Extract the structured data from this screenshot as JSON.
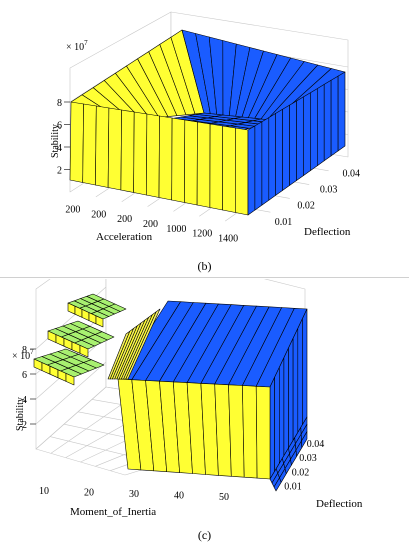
{
  "panels": [
    {
      "caption": "(b)",
      "chart_data": {
        "type": "surface",
        "zlabel": "Stability",
        "z_multiplier": "× 10",
        "z_multiplier_exp": "7",
        "xlabel": "Acceleration",
        "ylabel": "Deflection",
        "x_ticks": [
          "200",
          "200",
          "200",
          "200",
          "1000",
          "1200",
          "1400"
        ],
        "y_ticks": [
          "0.01",
          "0.02",
          "0.03",
          "0.04"
        ],
        "z_ticks": [
          "2",
          "4",
          "6",
          "8"
        ],
        "zlim": [
          0,
          9
        ],
        "colors": {
          "low": "#ffff33",
          "high": "#1a5cff",
          "edge": "#000000"
        }
      }
    },
    {
      "caption": "(c)",
      "chart_data": {
        "type": "surface",
        "zlabel": "Stability",
        "z_multiplier": "× 10",
        "z_multiplier_exp": "7",
        "xlabel": "Moment_of_Inertia",
        "ylabel": "Deflection",
        "x_ticks": [
          "10",
          "20",
          "30",
          "40",
          "50"
        ],
        "y_ticks": [
          "0.01",
          "0.02",
          "0.03",
          "0.04"
        ],
        "z_ticks": [
          "2",
          "4",
          "6",
          "8"
        ],
        "zlim": [
          0,
          9
        ],
        "colors": {
          "low": "#ffff33",
          "mid": "#a8f070",
          "high": "#1a5cff",
          "edge": "#000000"
        }
      }
    }
  ]
}
